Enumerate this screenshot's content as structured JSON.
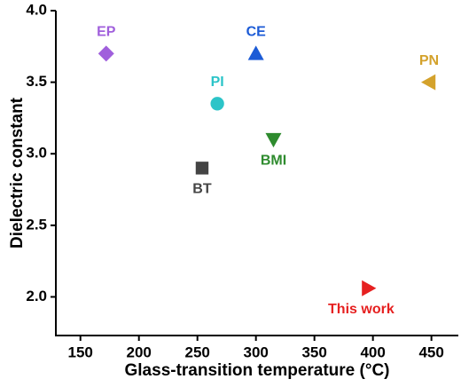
{
  "chart_data": {
    "type": "scatter",
    "x_label": "Glass-transition temperature (°C)",
    "y_label": "Dielectric constant",
    "xlim": [
      129,
      473
    ],
    "ylim": [
      1.73,
      4.0
    ],
    "xticks": [
      150,
      200,
      250,
      300,
      350,
      400,
      450
    ],
    "yticks": [
      {
        "value": 2,
        "label": "2.0"
      },
      {
        "value": 2.5,
        "label": "2.5"
      },
      {
        "value": 3,
        "label": "3.0"
      },
      {
        "value": 3.5,
        "label": "3.5"
      },
      {
        "value": 4,
        "label": "4.0"
      }
    ],
    "series": [
      {
        "name": "EP",
        "color": "#a05fdc",
        "marker": "diamond",
        "x": [
          172
        ],
        "values": [
          3.7
        ]
      },
      {
        "name": "CE",
        "color": "#1c5bd6",
        "marker": "triangle-up",
        "x": [
          300
        ],
        "values": [
          3.7
        ]
      },
      {
        "name": "PN",
        "color": "#d4a22c",
        "marker": "triangle-left",
        "x": [
          448
        ],
        "values": [
          3.5
        ]
      },
      {
        "name": "PI",
        "color": "#2cc4c8",
        "marker": "circle",
        "x": [
          267
        ],
        "values": [
          3.35
        ]
      },
      {
        "name": "BMI",
        "color": "#2e8b2e",
        "marker": "triangle-down",
        "x": [
          315
        ],
        "values": [
          3.1
        ]
      },
      {
        "name": "BT",
        "color": "#444444",
        "marker": "square",
        "x": [
          254
        ],
        "values": [
          2.9
        ]
      },
      {
        "name": "This work",
        "color": "#e62020",
        "marker": "triangle-right",
        "x": [
          396
        ],
        "values": [
          2.06
        ]
      }
    ]
  }
}
